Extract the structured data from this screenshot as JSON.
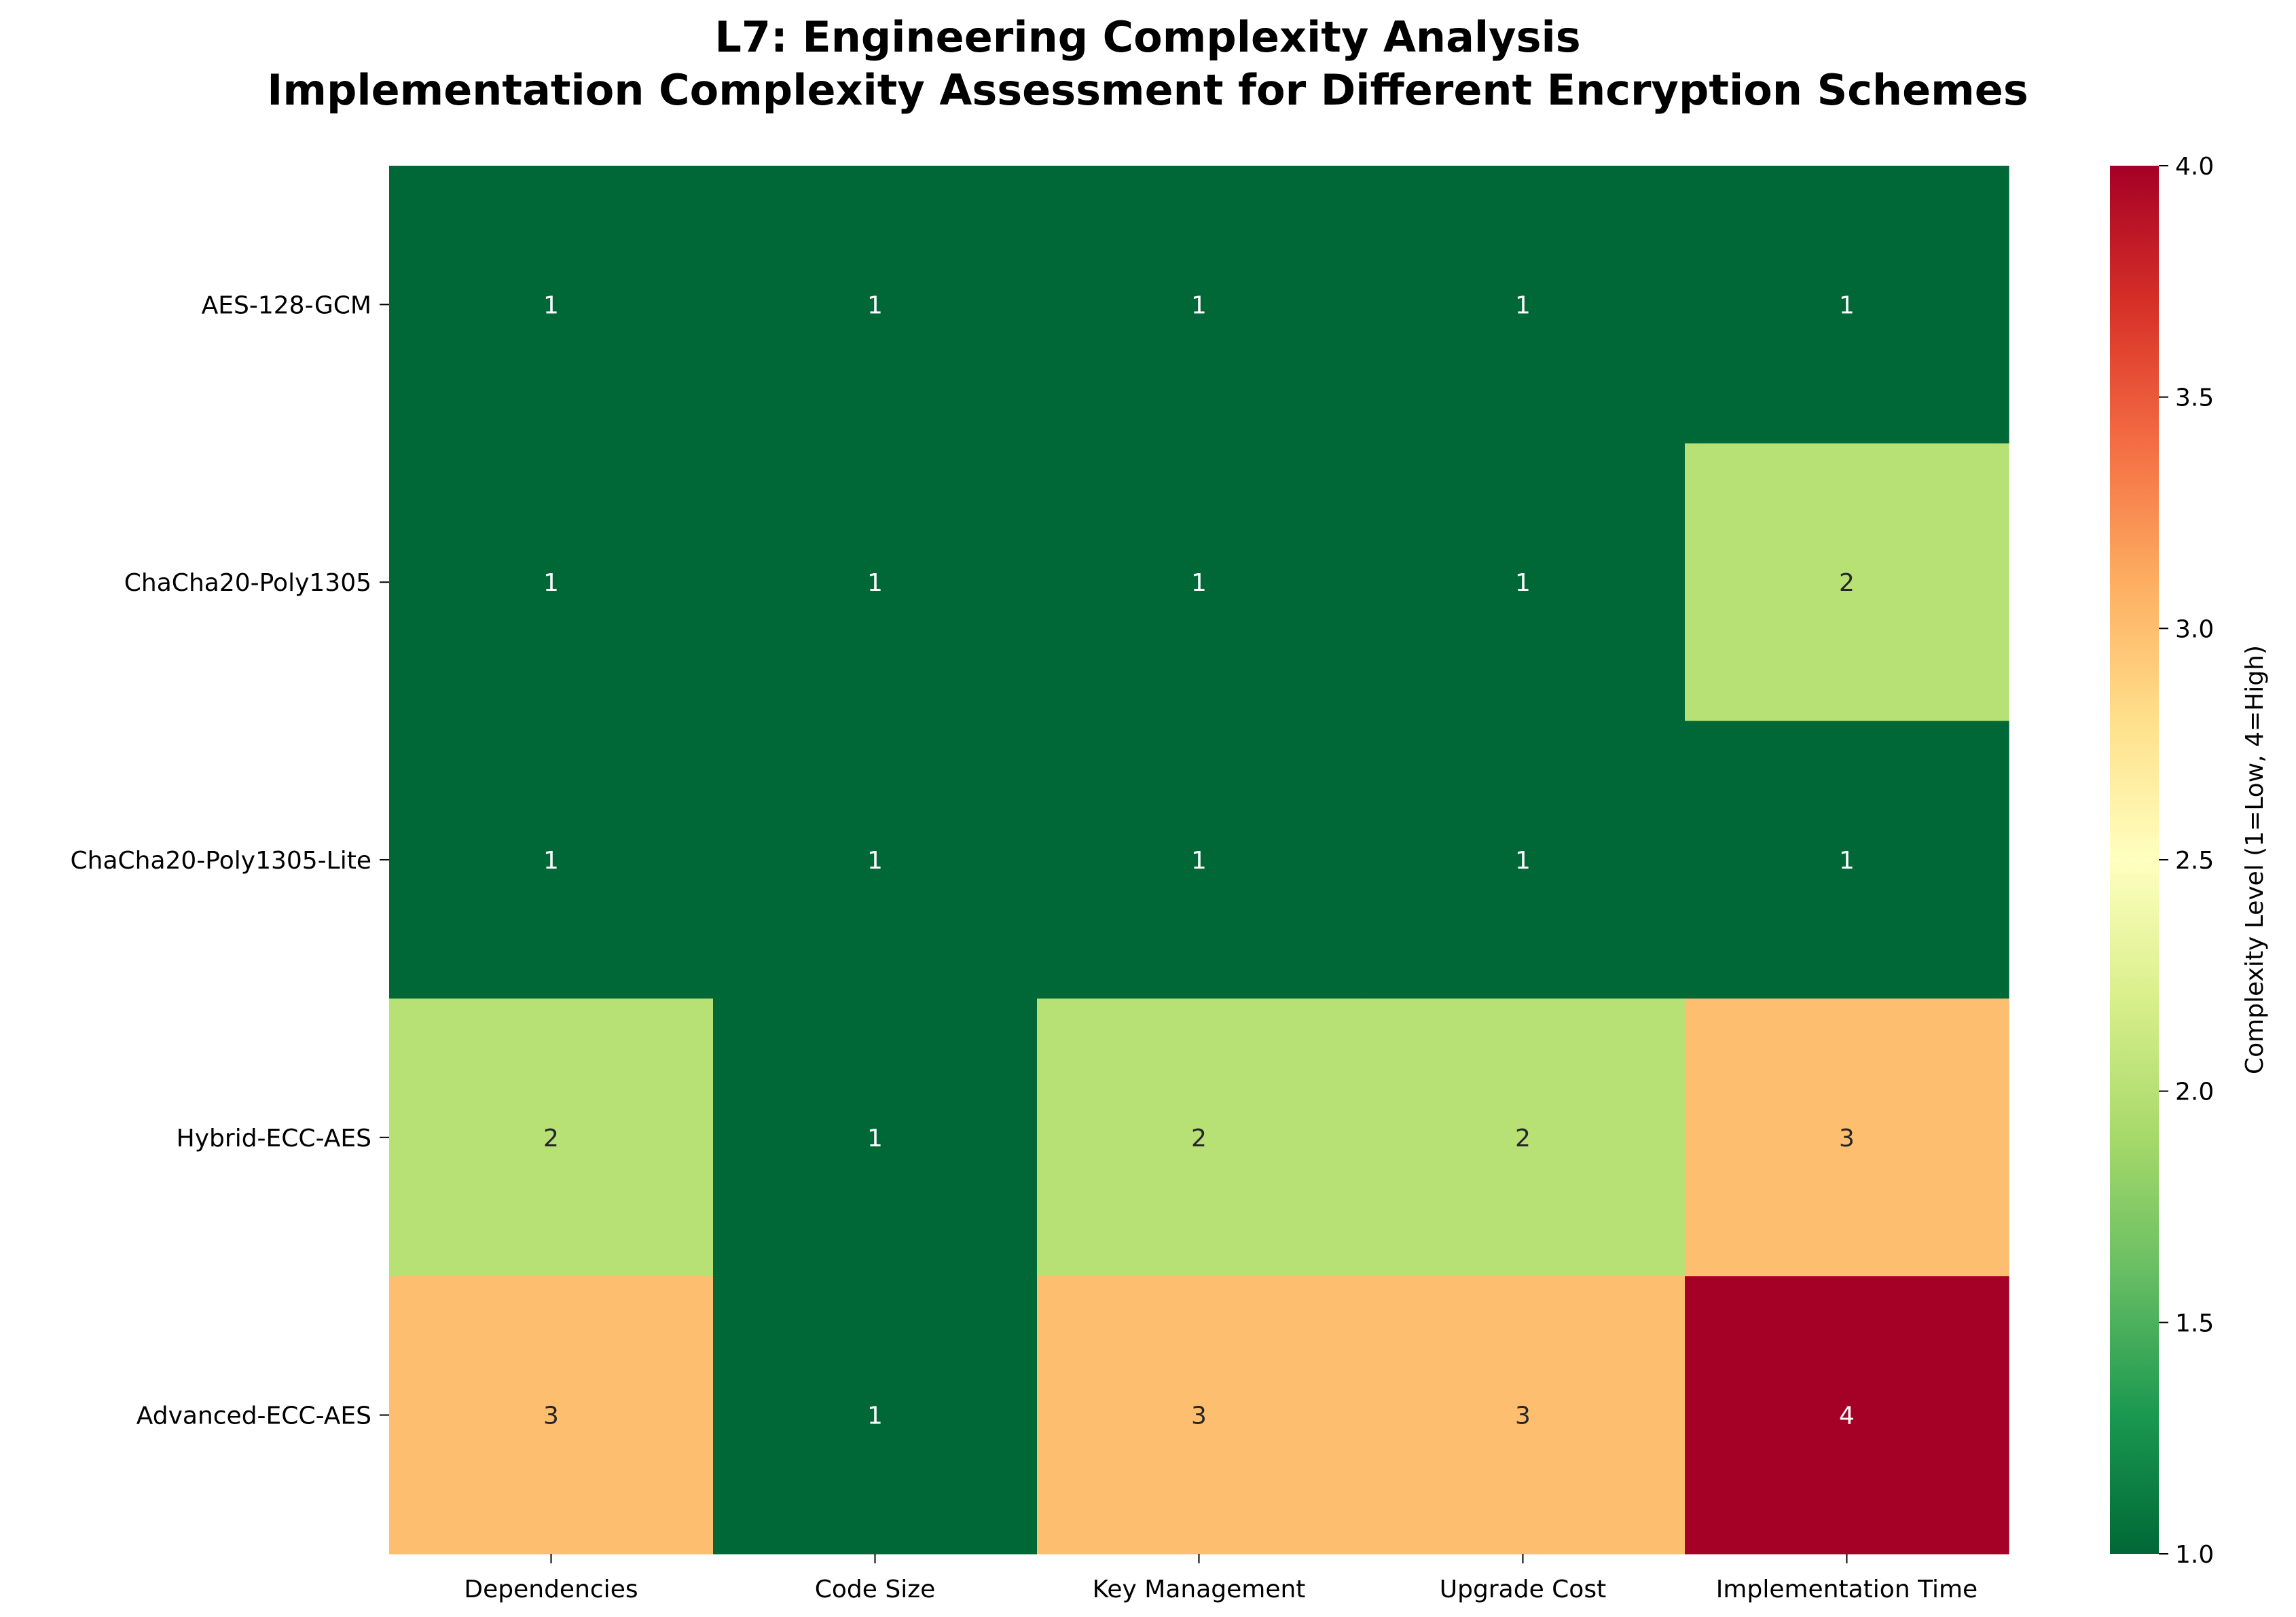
{
  "chart_data": {
    "type": "heatmap",
    "title": "L7: Engineering Complexity Analysis",
    "subtitle": "Implementation Complexity Assessment for Different Encryption Schemes",
    "columns": [
      "Dependencies",
      "Code Size",
      "Key Management",
      "Upgrade Cost",
      "Implementation Time"
    ],
    "rows": [
      "AES-128-GCM",
      "ChaCha20-Poly1305",
      "ChaCha20-Poly1305-Lite",
      "Hybrid-ECC-AES",
      "Advanced-ECC-AES"
    ],
    "values": [
      [
        1,
        1,
        1,
        1,
        1
      ],
      [
        1,
        1,
        1,
        1,
        2
      ],
      [
        1,
        1,
        1,
        1,
        1
      ],
      [
        2,
        1,
        2,
        2,
        3
      ],
      [
        3,
        1,
        3,
        3,
        4
      ]
    ],
    "annotations": true,
    "colormap": "RdYlGn_r",
    "colorbar": {
      "label": "Complexity Level (1=Low, 4=High)",
      "range": [
        1.0,
        4.0
      ],
      "ticks": [
        "1.0",
        "1.5",
        "2.0",
        "2.5",
        "3.0",
        "3.5",
        "4.0"
      ]
    },
    "colors": {
      "low": "#006837",
      "mid_low": "#b7e075",
      "mid_high": "#fdbf6f",
      "high": "#a50026"
    },
    "grid": false
  }
}
